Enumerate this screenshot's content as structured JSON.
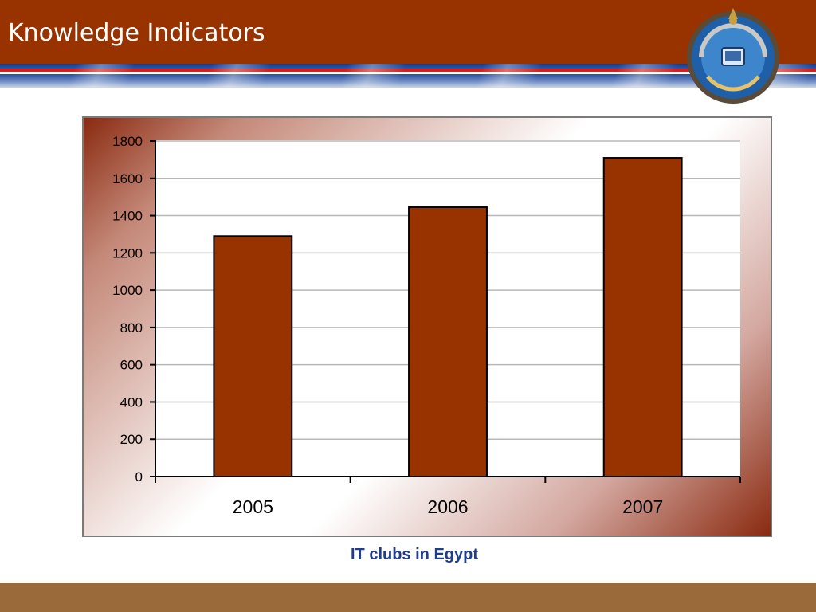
{
  "header": {
    "title": "Knowledge Indicators"
  },
  "emblem": {
    "icon": "ministry-emblem-icon"
  },
  "colors": {
    "header_bg": "#983300",
    "bar": "#983300",
    "caption": "#1f3d8c",
    "footer": "#9a6a3a"
  },
  "caption": "IT clubs in Egypt",
  "chart_data": {
    "type": "bar",
    "title": "",
    "xlabel": "",
    "ylabel": "",
    "categories": [
      "2005",
      "2006",
      "2007"
    ],
    "values": [
      1290,
      1445,
      1710
    ],
    "ylim": [
      0,
      1800
    ],
    "yticks": [
      0,
      200,
      400,
      600,
      800,
      1000,
      1200,
      1400,
      1600,
      1800
    ],
    "grid": true,
    "legend": "none"
  }
}
